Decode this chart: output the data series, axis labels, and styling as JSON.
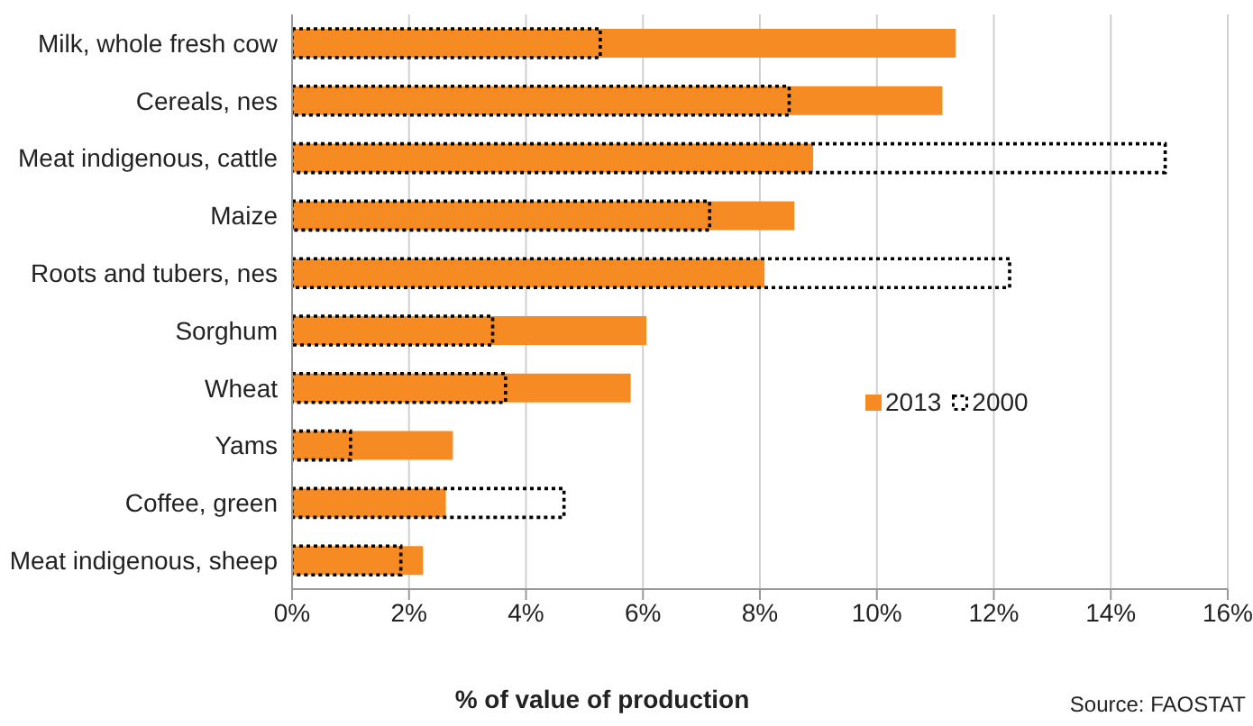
{
  "chart_data": {
    "type": "bar",
    "orientation": "horizontal",
    "categories": [
      "Milk, whole fresh cow",
      "Cereals, nes",
      "Meat indigenous, cattle",
      "Maize",
      "Roots and tubers, nes",
      "Sorghum",
      "Wheat",
      "Yams",
      "Coffee, green",
      "Meat indigenous, sheep"
    ],
    "series": [
      {
        "name": "2013",
        "color": "#f68b24",
        "values": [
          11.35,
          11.12,
          8.91,
          8.59,
          8.08,
          6.06,
          5.79,
          2.75,
          2.63,
          2.24
        ]
      },
      {
        "name": "2000",
        "color": "#000000",
        "line_style": "dotted",
        "values": [
          5.27,
          8.5,
          14.93,
          7.14,
          12.27,
          3.43,
          3.65,
          1.0,
          4.65,
          1.86
        ]
      }
    ],
    "xlim": [
      0,
      16
    ],
    "xticks": [
      {
        "value": 0,
        "label": "0%"
      },
      {
        "value": 2,
        "label": "2%"
      },
      {
        "value": 4,
        "label": "4%"
      },
      {
        "value": 6,
        "label": "6%"
      },
      {
        "value": 8,
        "label": "8%"
      },
      {
        "value": 10,
        "label": "10%"
      },
      {
        "value": 12,
        "label": "12%"
      },
      {
        "value": 14,
        "label": "14%"
      },
      {
        "value": 16,
        "label": "16%"
      }
    ],
    "xlabel": "% of value of production",
    "grid": "x",
    "legend": "right",
    "annotations": [
      "Source: FAOSTAT"
    ]
  }
}
